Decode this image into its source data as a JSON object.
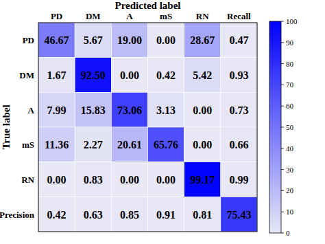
{
  "chart_data": {
    "type": "heatmap",
    "title": "Predicted label",
    "y_label": "True label",
    "categories": [
      "PD",
      "DM",
      "A",
      "mS",
      "RN",
      "Recall"
    ],
    "rows": [
      "PD",
      "DM",
      "A",
      "mS",
      "RN",
      "Precision"
    ],
    "cells": [
      [
        46.67,
        5.67,
        19.0,
        0.0,
        28.67,
        0.47
      ],
      [
        1.67,
        92.5,
        0.0,
        0.42,
        5.42,
        0.93
      ],
      [
        7.99,
        15.83,
        73.06,
        3.13,
        0.0,
        0.73
      ],
      [
        11.36,
        2.27,
        20.61,
        65.76,
        0.0,
        0.66
      ],
      [
        0.0,
        0.83,
        0.0,
        0.0,
        99.17,
        0.99
      ],
      [
        0.42,
        0.63,
        0.85,
        0.91,
        0.81,
        75.43
      ]
    ],
    "value_labels": [
      [
        "46.67",
        "5.67",
        "19.00",
        "0.00",
        "28.67",
        "0.47"
      ],
      [
        "1.67",
        "92.50",
        "0.00",
        "0.42",
        "5.42",
        "0.93"
      ],
      [
        "7.99",
        "15.83",
        "73.06",
        "3.13",
        "0.00",
        "0.73"
      ],
      [
        "11.36",
        "2.27",
        "20.61",
        "65.76",
        "0.00",
        "0.66"
      ],
      [
        "0.00",
        "0.83",
        "0.00",
        "0.00",
        "99.17",
        "0.99"
      ],
      [
        "0.42",
        "0.63",
        "0.85",
        "0.91",
        "0.81",
        "75.43"
      ]
    ],
    "colorbar_range": [
      0,
      100
    ],
    "colorbar_ticks": [
      0,
      10,
      20,
      30,
      40,
      50,
      60,
      70,
      80,
      90,
      100
    ],
    "data_labels": true
  }
}
